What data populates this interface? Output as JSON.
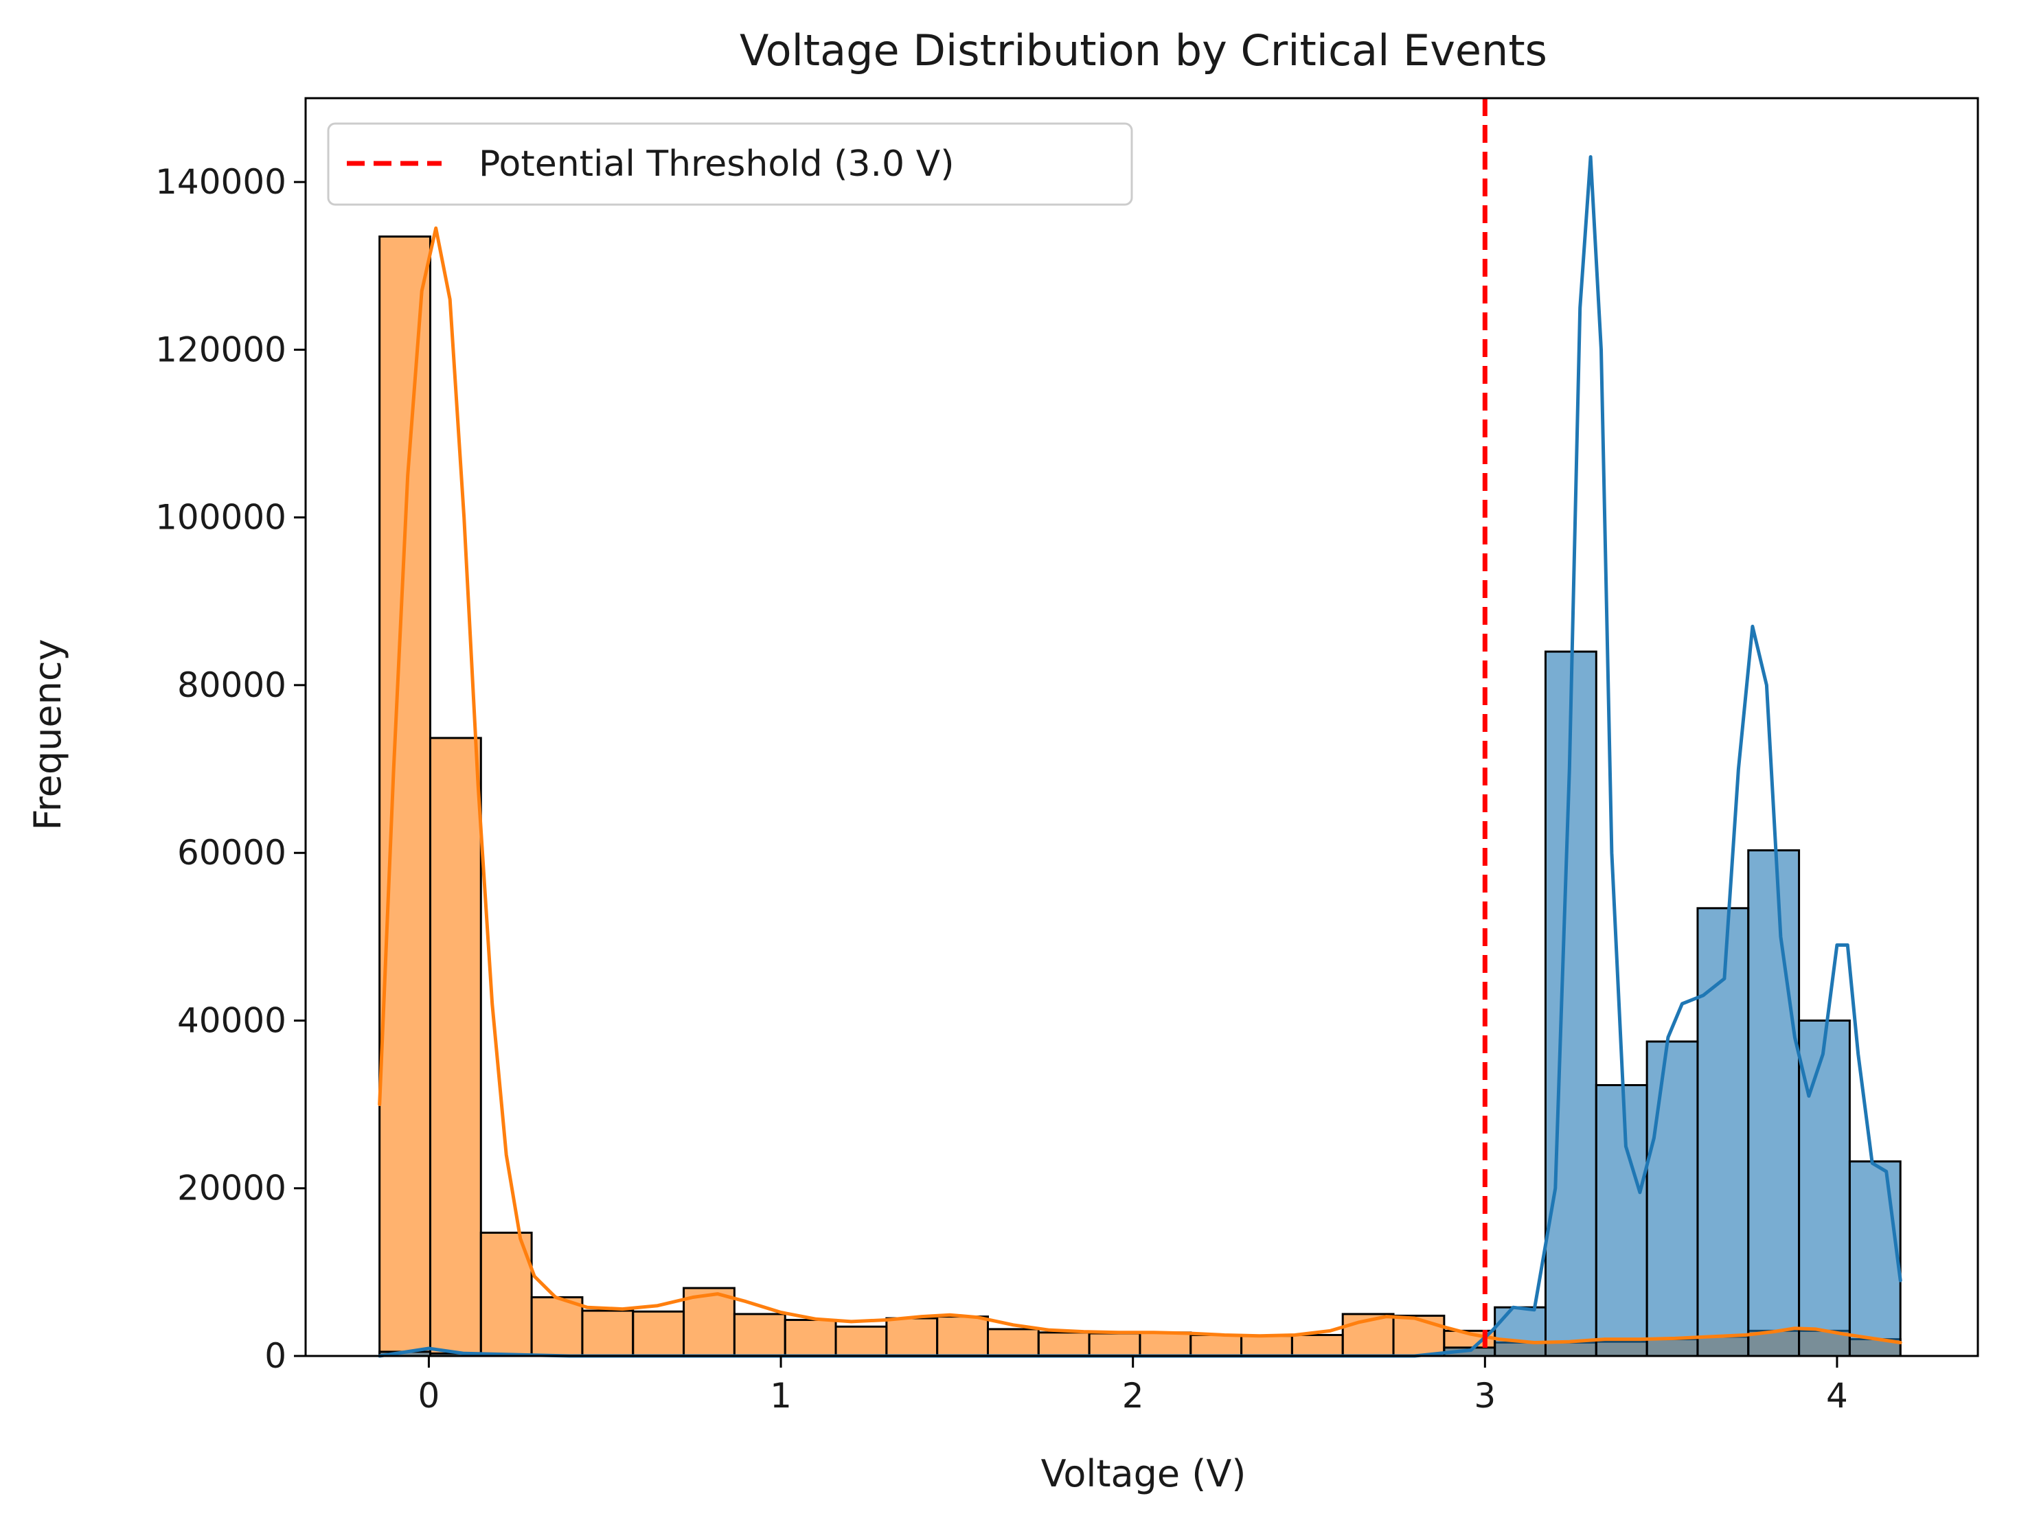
{
  "chart_data": {
    "type": "bar",
    "title": "Voltage Distribution by Critical Events",
    "xlabel": "Voltage (V)",
    "ylabel": "Frequency",
    "xlim": [
      -0.35,
      4.4
    ],
    "ylim": [
      0,
      150000
    ],
    "x_ticks": [
      0,
      1,
      2,
      3,
      4
    ],
    "y_ticks": [
      0,
      20000,
      40000,
      60000,
      80000,
      100000,
      120000,
      140000
    ],
    "grid": false,
    "legend": {
      "position": "top-left",
      "entries": [
        {
          "label": "Potential Threshold (3.0 V)",
          "style": "dashed-line",
          "color": "#ff0000"
        }
      ]
    },
    "threshold": {
      "x": 3.0,
      "color": "#ff0000",
      "style": "dashed"
    },
    "bin_width": 0.144,
    "series": [
      {
        "color": "#ff7f0e",
        "bins": [
          {
            "x0": -0.14,
            "value": 133500
          },
          {
            "x0": 0.004,
            "value": 73700
          },
          {
            "x0": 0.148,
            "value": 14700
          },
          {
            "x0": 0.292,
            "value": 7000
          },
          {
            "x0": 0.436,
            "value": 5400
          },
          {
            "x0": 0.58,
            "value": 5300
          },
          {
            "x0": 0.724,
            "value": 8100
          },
          {
            "x0": 0.868,
            "value": 5000
          },
          {
            "x0": 1.012,
            "value": 4300
          },
          {
            "x0": 1.156,
            "value": 3500
          },
          {
            "x0": 1.3,
            "value": 4500
          },
          {
            "x0": 1.444,
            "value": 4700
          },
          {
            "x0": 1.588,
            "value": 3200
          },
          {
            "x0": 1.732,
            "value": 2800
          },
          {
            "x0": 1.876,
            "value": 2700
          },
          {
            "x0": 2.02,
            "value": 2800
          },
          {
            "x0": 2.164,
            "value": 2500
          },
          {
            "x0": 2.308,
            "value": 2400
          },
          {
            "x0": 2.452,
            "value": 2500
          },
          {
            "x0": 2.596,
            "value": 5000
          },
          {
            "x0": 2.74,
            "value": 4800
          },
          {
            "x0": 2.884,
            "value": 3000
          },
          {
            "x0": 3.028,
            "value": 1600
          },
          {
            "x0": 3.172,
            "value": 1600
          },
          {
            "x0": 3.316,
            "value": 1700
          },
          {
            "x0": 3.46,
            "value": 2000
          },
          {
            "x0": 3.604,
            "value": 2300
          },
          {
            "x0": 3.748,
            "value": 3000
          },
          {
            "x0": 3.892,
            "value": 3000
          },
          {
            "x0": 4.036,
            "value": 2000
          }
        ],
        "kde": [
          [
            -0.14,
            30000
          ],
          [
            -0.1,
            70000
          ],
          [
            -0.06,
            105000
          ],
          [
            -0.02,
            127000
          ],
          [
            0.02,
            134500
          ],
          [
            0.06,
            126000
          ],
          [
            0.1,
            100000
          ],
          [
            0.14,
            68000
          ],
          [
            0.18,
            42000
          ],
          [
            0.22,
            24000
          ],
          [
            0.26,
            14000
          ],
          [
            0.3,
            9500
          ],
          [
            0.36,
            7000
          ],
          [
            0.45,
            5800
          ],
          [
            0.55,
            5600
          ],
          [
            0.65,
            6000
          ],
          [
            0.75,
            7000
          ],
          [
            0.82,
            7400
          ],
          [
            0.9,
            6500
          ],
          [
            1.0,
            5200
          ],
          [
            1.1,
            4400
          ],
          [
            1.2,
            4100
          ],
          [
            1.3,
            4300
          ],
          [
            1.4,
            4700
          ],
          [
            1.48,
            4900
          ],
          [
            1.56,
            4600
          ],
          [
            1.66,
            3700
          ],
          [
            1.76,
            3100
          ],
          [
            1.86,
            2900
          ],
          [
            1.96,
            2800
          ],
          [
            2.06,
            2800
          ],
          [
            2.16,
            2700
          ],
          [
            2.26,
            2500
          ],
          [
            2.36,
            2400
          ],
          [
            2.46,
            2500
          ],
          [
            2.56,
            3000
          ],
          [
            2.64,
            4000
          ],
          [
            2.72,
            4700
          ],
          [
            2.8,
            4500
          ],
          [
            2.88,
            3500
          ],
          [
            2.96,
            2600
          ],
          [
            3.04,
            2000
          ],
          [
            3.14,
            1600
          ],
          [
            3.24,
            1700
          ],
          [
            3.34,
            2000
          ],
          [
            3.44,
            2000
          ],
          [
            3.54,
            2100
          ],
          [
            3.64,
            2300
          ],
          [
            3.74,
            2500
          ],
          [
            3.82,
            2900
          ],
          [
            3.88,
            3300
          ],
          [
            3.94,
            3200
          ],
          [
            4.02,
            2600
          ],
          [
            4.1,
            2100
          ],
          [
            4.18,
            1600
          ]
        ]
      },
      {
        "color": "#1f77b4",
        "bins": [
          {
            "x0": -0.14,
            "value": 500
          },
          {
            "x0": 0.004,
            "value": 300
          },
          {
            "x0": 2.884,
            "value": 1000
          },
          {
            "x0": 3.028,
            "value": 5800
          },
          {
            "x0": 3.172,
            "value": 84000
          },
          {
            "x0": 3.316,
            "value": 32300
          },
          {
            "x0": 3.46,
            "value": 37500
          },
          {
            "x0": 3.604,
            "value": 53400
          },
          {
            "x0": 3.748,
            "value": 60300
          },
          {
            "x0": 3.892,
            "value": 40000
          },
          {
            "x0": 4.036,
            "value": 23200
          }
        ],
        "kde": [
          [
            -0.14,
            0
          ],
          [
            0.0,
            900
          ],
          [
            0.1,
            300
          ],
          [
            0.4,
            0
          ],
          [
            2.8,
            0
          ],
          [
            2.96,
            700
          ],
          [
            3.02,
            3000
          ],
          [
            3.08,
            5800
          ],
          [
            3.14,
            5500
          ],
          [
            3.2,
            20000
          ],
          [
            3.24,
            70000
          ],
          [
            3.27,
            125000
          ],
          [
            3.3,
            143000
          ],
          [
            3.33,
            120000
          ],
          [
            3.36,
            60000
          ],
          [
            3.4,
            25000
          ],
          [
            3.44,
            19500
          ],
          [
            3.48,
            26000
          ],
          [
            3.52,
            38000
          ],
          [
            3.56,
            42000
          ],
          [
            3.62,
            43000
          ],
          [
            3.68,
            45000
          ],
          [
            3.72,
            70000
          ],
          [
            3.76,
            87000
          ],
          [
            3.8,
            80000
          ],
          [
            3.84,
            50000
          ],
          [
            3.88,
            38000
          ],
          [
            3.92,
            31000
          ],
          [
            3.96,
            36000
          ],
          [
            4.0,
            49000
          ],
          [
            4.03,
            49000
          ],
          [
            4.06,
            36000
          ],
          [
            4.1,
            23000
          ],
          [
            4.14,
            22000
          ],
          [
            4.18,
            9000
          ]
        ]
      }
    ]
  }
}
